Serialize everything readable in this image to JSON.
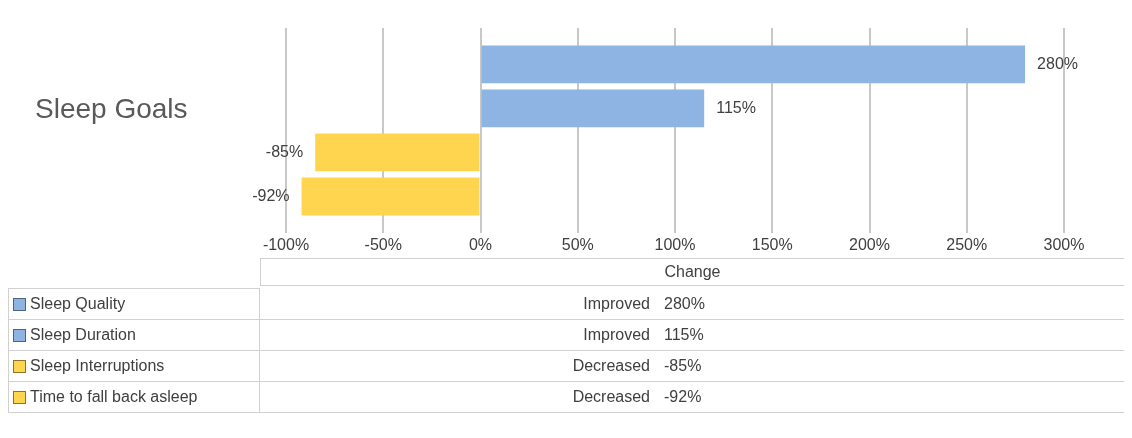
{
  "chart_data": {
    "type": "bar",
    "orientation": "horizontal",
    "title": "Sleep Goals",
    "categories": [
      null
    ],
    "series": [
      {
        "name": "Sleep Quality",
        "color": "#8eb4e3",
        "values": [
          280
        ],
        "value_labels": [
          "280%"
        ]
      },
      {
        "name": "Sleep Duration",
        "color": "#8eb4e3",
        "values": [
          115
        ],
        "value_labels": [
          "115%"
        ]
      },
      {
        "name": "Sleep Interruptions",
        "color": "#ffd54f",
        "values": [
          -85
        ],
        "value_labels": [
          "-85%"
        ]
      },
      {
        "name": "Time to fall back asleep",
        "color": "#ffd54f",
        "values": [
          -92
        ],
        "value_labels": [
          "-92%"
        ]
      }
    ],
    "annotations": [
      "Change",
      "Improved",
      "Improved",
      "Decreased",
      "Decreased"
    ],
    "xlim": [
      -100,
      300
    ],
    "xticks": [
      {
        "value": -100,
        "label": "-100%"
      },
      {
        "value": -50,
        "label": "-50%"
      },
      {
        "value": 0,
        "label": "0%"
      },
      {
        "value": 50,
        "label": "50%"
      },
      {
        "value": 100,
        "label": "100%"
      },
      {
        "value": 150,
        "label": "150%"
      },
      {
        "value": 200,
        "label": "200%"
      },
      {
        "value": 250,
        "label": "250%"
      },
      {
        "value": 300,
        "label": "300%"
      }
    ],
    "grid": "x",
    "tick_labels": "x",
    "legend": "bottom"
  }
}
